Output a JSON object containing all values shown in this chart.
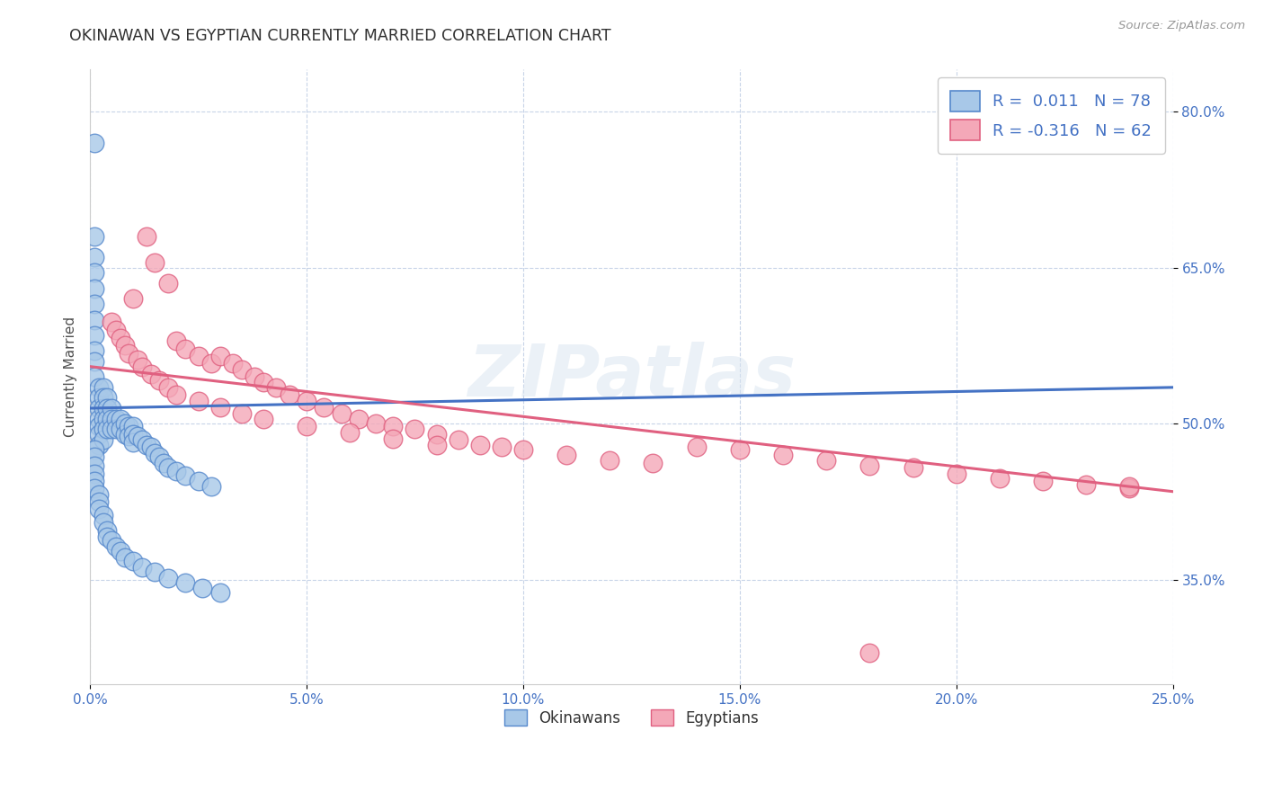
{
  "title": "OKINAWAN VS EGYPTIAN CURRENTLY MARRIED CORRELATION CHART",
  "source": "Source: ZipAtlas.com",
  "ylabel": "Currently Married",
  "x_min": 0.0,
  "x_max": 0.25,
  "y_min": 0.25,
  "y_max": 0.84,
  "x_ticks": [
    0.0,
    0.05,
    0.1,
    0.15,
    0.2,
    0.25
  ],
  "x_tick_labels": [
    "0.0%",
    "5.0%",
    "10.0%",
    "15.0%",
    "20.0%",
    "25.0%"
  ],
  "y_ticks": [
    0.35,
    0.5,
    0.65,
    0.8
  ],
  "y_tick_labels": [
    "35.0%",
    "50.0%",
    "65.0%",
    "80.0%"
  ],
  "okinawan_color": "#a8c8e8",
  "egyptian_color": "#f4a8b8",
  "okinawan_edge_color": "#5588cc",
  "egyptian_edge_color": "#e06080",
  "okinawan_line_color": "#4472c4",
  "egyptian_line_color": "#e06080",
  "okinawan_R": 0.011,
  "okinawan_N": 78,
  "egyptian_R": -0.316,
  "egyptian_N": 62,
  "legend_label_okinawan": "Okinawans",
  "legend_label_egyptian": "Egyptians",
  "grid_color": "#c8d4e8",
  "background_color": "#ffffff",
  "title_color": "#303030",
  "axis_color": "#4472c4",
  "watermark": "ZIPatlas",
  "okinawan_x": [
    0.001,
    0.001,
    0.001,
    0.001,
    0.001,
    0.001,
    0.001,
    0.001,
    0.001,
    0.001,
    0.001,
    0.002,
    0.002,
    0.002,
    0.002,
    0.002,
    0.002,
    0.002,
    0.003,
    0.003,
    0.003,
    0.003,
    0.003,
    0.003,
    0.004,
    0.004,
    0.004,
    0.004,
    0.005,
    0.005,
    0.005,
    0.006,
    0.006,
    0.007,
    0.007,
    0.008,
    0.008,
    0.009,
    0.009,
    0.01,
    0.01,
    0.01,
    0.011,
    0.012,
    0.013,
    0.014,
    0.015,
    0.016,
    0.017,
    0.018,
    0.02,
    0.022,
    0.025,
    0.028,
    0.001,
    0.001,
    0.001,
    0.001,
    0.001,
    0.001,
    0.002,
    0.002,
    0.002,
    0.003,
    0.003,
    0.004,
    0.004,
    0.005,
    0.006,
    0.007,
    0.008,
    0.01,
    0.012,
    0.015,
    0.018,
    0.022,
    0.026,
    0.03
  ],
  "okinawan_y": [
    0.77,
    0.68,
    0.66,
    0.645,
    0.63,
    0.615,
    0.6,
    0.585,
    0.57,
    0.56,
    0.545,
    0.535,
    0.525,
    0.515,
    0.505,
    0.498,
    0.49,
    0.48,
    0.535,
    0.525,
    0.515,
    0.505,
    0.495,
    0.485,
    0.525,
    0.515,
    0.505,
    0.495,
    0.515,
    0.505,
    0.495,
    0.505,
    0.495,
    0.505,
    0.495,
    0.5,
    0.49,
    0.498,
    0.488,
    0.498,
    0.49,
    0.482,
    0.488,
    0.485,
    0.48,
    0.478,
    0.472,
    0.468,
    0.462,
    0.458,
    0.455,
    0.45,
    0.445,
    0.44,
    0.475,
    0.468,
    0.46,
    0.452,
    0.445,
    0.438,
    0.432,
    0.425,
    0.418,
    0.412,
    0.405,
    0.398,
    0.392,
    0.388,
    0.382,
    0.378,
    0.372,
    0.368,
    0.362,
    0.358,
    0.352,
    0.348,
    0.342,
    0.338
  ],
  "egyptian_x": [
    0.01,
    0.013,
    0.015,
    0.018,
    0.02,
    0.022,
    0.025,
    0.028,
    0.03,
    0.033,
    0.035,
    0.038,
    0.04,
    0.043,
    0.046,
    0.05,
    0.054,
    0.058,
    0.062,
    0.066,
    0.07,
    0.075,
    0.08,
    0.085,
    0.09,
    0.095,
    0.1,
    0.11,
    0.12,
    0.13,
    0.14,
    0.15,
    0.16,
    0.17,
    0.18,
    0.19,
    0.2,
    0.21,
    0.22,
    0.23,
    0.24,
    0.005,
    0.006,
    0.007,
    0.008,
    0.009,
    0.011,
    0.012,
    0.014,
    0.016,
    0.018,
    0.02,
    0.025,
    0.03,
    0.035,
    0.04,
    0.05,
    0.06,
    0.07,
    0.08,
    0.18,
    0.24
  ],
  "egyptian_y": [
    0.62,
    0.68,
    0.655,
    0.635,
    0.58,
    0.572,
    0.565,
    0.558,
    0.565,
    0.558,
    0.552,
    0.545,
    0.54,
    0.535,
    0.528,
    0.522,
    0.516,
    0.51,
    0.505,
    0.5,
    0.498,
    0.495,
    0.49,
    0.485,
    0.48,
    0.478,
    0.475,
    0.47,
    0.465,
    0.462,
    0.478,
    0.475,
    0.47,
    0.465,
    0.46,
    0.458,
    0.452,
    0.448,
    0.445,
    0.442,
    0.438,
    0.598,
    0.59,
    0.582,
    0.575,
    0.568,
    0.562,
    0.555,
    0.548,
    0.542,
    0.535,
    0.528,
    0.522,
    0.516,
    0.51,
    0.505,
    0.498,
    0.492,
    0.486,
    0.48,
    0.28,
    0.44
  ],
  "okin_trend_x0": 0.0,
  "okin_trend_x1": 0.25,
  "okin_trend_y0": 0.515,
  "okin_trend_y1": 0.535,
  "egypt_trend_x0": 0.0,
  "egypt_trend_x1": 0.25,
  "egypt_trend_y0": 0.555,
  "egypt_trend_y1": 0.435
}
